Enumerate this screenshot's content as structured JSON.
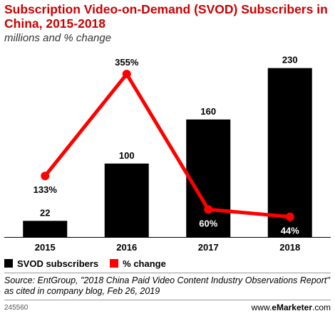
{
  "header": {
    "title": "Subscription Video-on-Demand (SVOD) Subscribers in China, 2015-2018",
    "subtitle": "millions and % change"
  },
  "legend": {
    "bar_label": "SVOD subscribers",
    "line_label": "% change"
  },
  "footer": {
    "source": "Source: EntGroup, \"2018 China Paid Video Content Industry Observations Report\" as cited in company blog, Feb 26, 2019",
    "chart_id": "245560",
    "brand_prefix": "www.",
    "brand_name": "eMarketer",
    "brand_suffix": ".com"
  },
  "colors": {
    "bar": "#000000",
    "line": "#ff0000",
    "title": "#cc0000"
  },
  "chart_data": {
    "type": "bar",
    "categories": [
      "2015",
      "2016",
      "2017",
      "2018"
    ],
    "series": [
      {
        "name": "SVOD subscribers",
        "type": "bar",
        "values": [
          22,
          100,
          160,
          230
        ],
        "labels": [
          "22",
          "100",
          "160",
          "230"
        ]
      },
      {
        "name": "% change",
        "type": "line",
        "values": [
          133,
          355,
          60,
          44
        ],
        "labels": [
          "133%",
          "355%",
          "60%",
          "44%"
        ]
      }
    ],
    "title": "Subscription Video-on-Demand (SVOD) Subscribers in China, 2015-2018",
    "subtitle": "millions and % change",
    "ylim_bars": [
      0,
      250
    ],
    "ylim_line": [
      0,
      400
    ],
    "grid": false,
    "legend": "bottom-left"
  }
}
